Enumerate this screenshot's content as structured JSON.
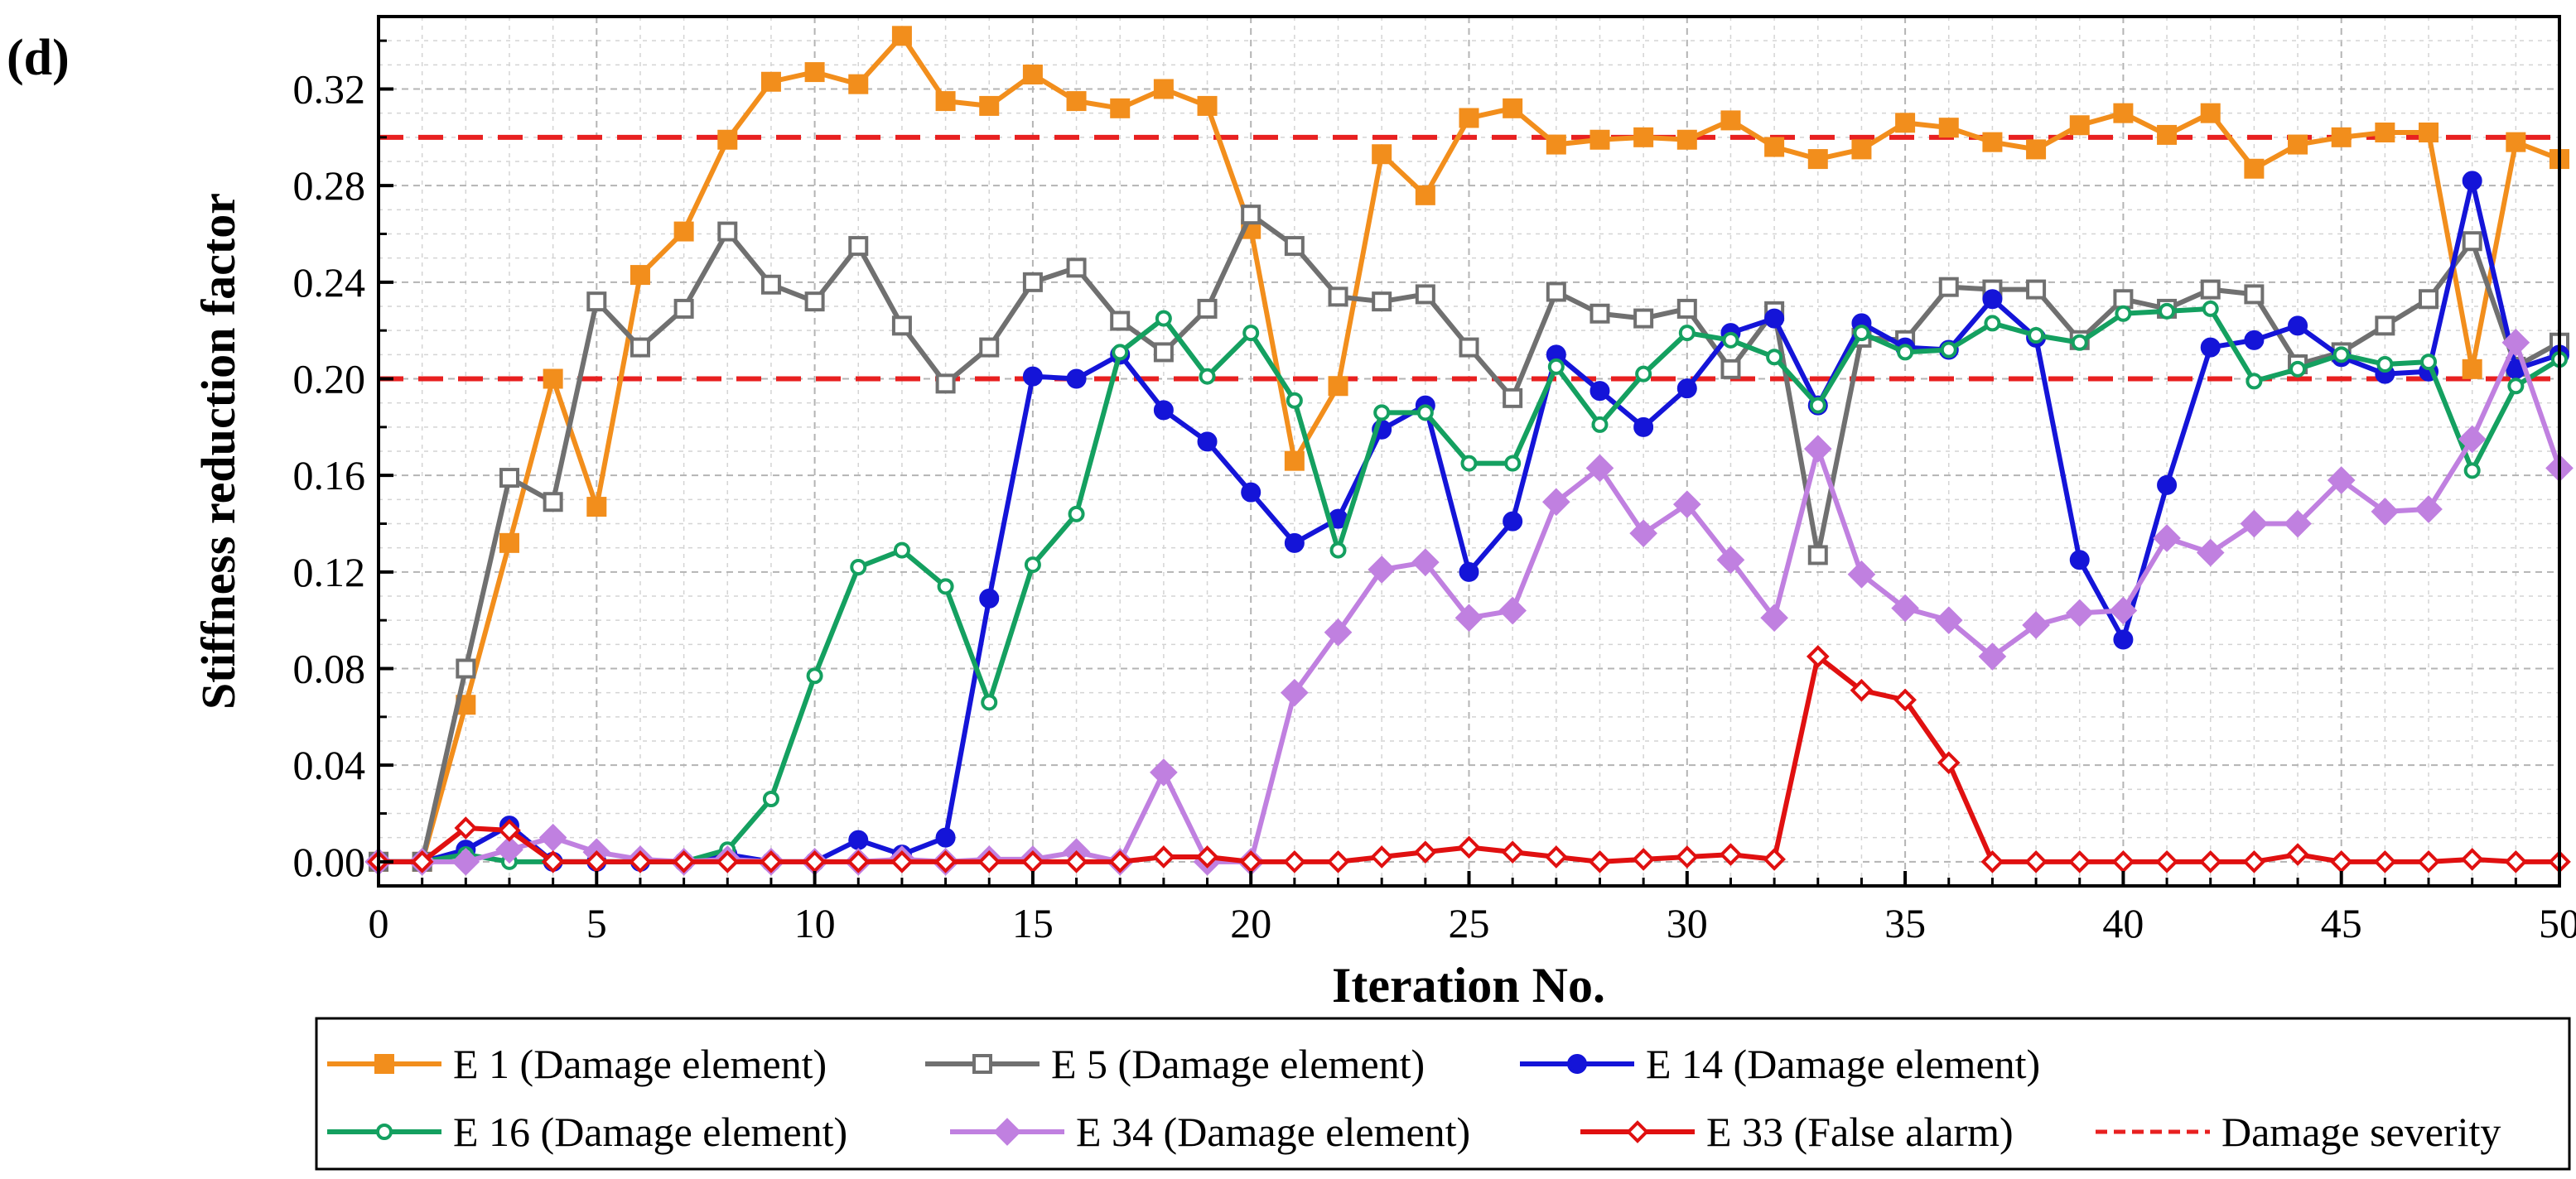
{
  "panel_label": "(d)",
  "chart_data": {
    "type": "line",
    "title": "",
    "xlabel": "Iteration No.",
    "ylabel": "Stiffness reduction factor",
    "xlim": [
      0,
      50
    ],
    "ylim": [
      -0.01,
      0.35
    ],
    "xticks": [
      0,
      5,
      10,
      15,
      20,
      25,
      30,
      35,
      40,
      45,
      50
    ],
    "xtick_labels": [
      "0",
      "5",
      "10",
      "15",
      "20",
      "25",
      "30",
      "35",
      "40",
      "45",
      "50"
    ],
    "yticks": [
      0.0,
      0.04,
      0.08,
      0.12,
      0.16,
      0.2,
      0.24,
      0.28,
      0.32
    ],
    "ytick_labels": [
      "0.00",
      "0.04",
      "0.08",
      "0.12",
      "0.16",
      "0.20",
      "0.24",
      "0.28",
      "0.32"
    ],
    "grid": true,
    "legend_position": "bottom",
    "x": [
      0,
      1,
      2,
      3,
      4,
      5,
      6,
      7,
      8,
      9,
      10,
      11,
      12,
      13,
      14,
      15,
      16,
      17,
      18,
      19,
      20,
      21,
      22,
      23,
      24,
      25,
      26,
      27,
      28,
      29,
      30,
      31,
      32,
      33,
      34,
      35,
      36,
      37,
      38,
      39,
      40,
      41,
      42,
      43,
      44,
      45,
      46,
      47,
      48,
      49,
      50
    ],
    "series": [
      {
        "name": "E 1 (Damage element)",
        "color": "#F28E1C",
        "marker": "square-filled",
        "values": [
          0,
          0,
          0.065,
          0.132,
          0.2,
          0.147,
          0.243,
          0.261,
          0.299,
          0.323,
          0.327,
          0.322,
          0.342,
          0.315,
          0.313,
          0.326,
          0.315,
          0.312,
          0.32,
          0.313,
          0.262,
          0.166,
          0.197,
          0.293,
          0.276,
          0.308,
          0.312,
          0.297,
          0.299,
          0.3,
          0.299,
          0.307,
          0.296,
          0.291,
          0.295,
          0.306,
          0.304,
          0.298,
          0.295,
          0.305,
          0.31,
          0.301,
          0.31,
          0.287,
          0.297,
          0.3,
          0.302,
          0.302,
          0.204,
          0.298,
          0.291
        ]
      },
      {
        "name": "E 5 (Damage element)",
        "color": "#707070",
        "marker": "square-open",
        "values": [
          0,
          0,
          0.08,
          0.159,
          0.149,
          0.232,
          0.213,
          0.229,
          0.261,
          0.239,
          0.232,
          0.255,
          0.222,
          0.198,
          0.213,
          0.24,
          0.246,
          0.224,
          0.211,
          0.229,
          0.268,
          0.255,
          0.234,
          0.232,
          0.235,
          0.213,
          0.192,
          0.236,
          0.227,
          0.225,
          0.229,
          0.204,
          0.228,
          0.127,
          0.217,
          0.216,
          0.238,
          0.237,
          0.237,
          0.216,
          0.233,
          0.229,
          0.237,
          0.235,
          0.206,
          0.211,
          0.222,
          0.233,
          0.257,
          0.205,
          0.215
        ]
      },
      {
        "name": "E 14 (Damage element)",
        "color": "#1414D8",
        "marker": "circle-filled",
        "values": [
          0,
          0,
          0.005,
          0.015,
          0,
          0,
          0,
          0,
          0.003,
          0,
          0,
          0.009,
          0.003,
          0.01,
          0.109,
          0.201,
          0.2,
          0.21,
          0.187,
          0.174,
          0.153,
          0.132,
          0.142,
          0.179,
          0.189,
          0.12,
          0.141,
          0.21,
          0.195,
          0.18,
          0.196,
          0.219,
          0.225,
          0.189,
          0.223,
          0.213,
          0.212,
          0.233,
          0.217,
          0.125,
          0.092,
          0.156,
          0.213,
          0.216,
          0.222,
          0.209,
          0.202,
          0.203,
          0.282,
          0.204,
          0.21
        ]
      },
      {
        "name": "E 16 (Damage element)",
        "color": "#14A060",
        "marker": "circle-open",
        "values": [
          0,
          0,
          0.003,
          0,
          0,
          0,
          0,
          0,
          0.005,
          0.026,
          0.077,
          0.122,
          0.129,
          0.114,
          0.066,
          0.123,
          0.144,
          0.211,
          0.225,
          0.201,
          0.219,
          0.191,
          0.129,
          0.186,
          0.186,
          0.165,
          0.165,
          0.205,
          0.181,
          0.202,
          0.219,
          0.216,
          0.209,
          0.189,
          0.219,
          0.211,
          0.212,
          0.223,
          0.218,
          0.215,
          0.227,
          0.228,
          0.229,
          0.199,
          0.204,
          0.21,
          0.206,
          0.207,
          0.162,
          0.197,
          0.208
        ]
      },
      {
        "name": "E 34 (Damage element)",
        "color": "#C080E0",
        "marker": "diamond-filled",
        "values": [
          0,
          0,
          0,
          0.005,
          0.01,
          0.004,
          0.001,
          0,
          0.001,
          0,
          0,
          0,
          0.001,
          0,
          0.001,
          0.001,
          0.004,
          0,
          0.037,
          0,
          0,
          0.07,
          0.095,
          0.121,
          0.124,
          0.101,
          0.104,
          0.149,
          0.163,
          0.136,
          0.148,
          0.125,
          0.101,
          0.171,
          0.119,
          0.105,
          0.1,
          0.085,
          0.098,
          0.103,
          0.104,
          0.134,
          0.128,
          0.14,
          0.14,
          0.158,
          0.145,
          0.146,
          0.175,
          0.215,
          0.163
        ]
      },
      {
        "name": "E 33 (False alarm)",
        "color": "#E01010",
        "marker": "diamond-open",
        "values": [
          0,
          0,
          0.014,
          0.013,
          0,
          0,
          0,
          0,
          0,
          0,
          0,
          0,
          0,
          0,
          0,
          0,
          0,
          0,
          0.002,
          0.002,
          0,
          0,
          0,
          0.002,
          0.004,
          0.006,
          0.004,
          0.002,
          0,
          0.001,
          0.002,
          0.003,
          0.001,
          0.085,
          0.071,
          0.067,
          0.041,
          0,
          0,
          0,
          0,
          0,
          0,
          0,
          0.003,
          0,
          0,
          0,
          0.001,
          0,
          0
        ]
      }
    ],
    "reference_lines": {
      "name": "Damage severity",
      "color": "#E82020",
      "style": "dashed",
      "values": [
        0.3,
        0.2
      ]
    }
  }
}
